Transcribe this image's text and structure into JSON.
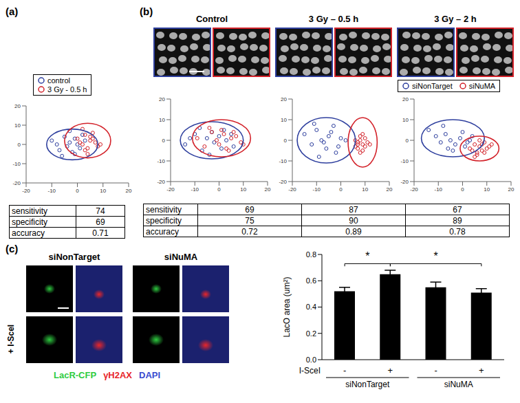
{
  "chart_data": [
    {
      "type": "scatter",
      "panel": "(a)",
      "xlim": [
        -20,
        20
      ],
      "ylim": [
        -20,
        20
      ],
      "xticks": [
        -20,
        -10,
        0,
        10,
        20
      ],
      "yticks": [
        -20,
        -10,
        0,
        10,
        20
      ],
      "legend": "top",
      "series": [
        {
          "name": "control",
          "color": "#2e3f9e",
          "x": [
            -10,
            -7,
            -5,
            -4,
            -3,
            -2,
            -1,
            0,
            1,
            2,
            -6,
            -8,
            -3,
            -1,
            3
          ],
          "values": [
            2,
            -3,
            4,
            -1,
            1,
            -4,
            3,
            0,
            -2,
            5,
            -6,
            0,
            7,
            -5,
            2
          ],
          "ellipse": {
            "cx": -2,
            "cy": 0,
            "rx": 10,
            "ry": 8
          }
        },
        {
          "name": "3 Gy - 0.5 h",
          "color": "#d3222a",
          "x": [
            0,
            2,
            3,
            4,
            5,
            6,
            7,
            3,
            1,
            5,
            8,
            2,
            4,
            6,
            9
          ],
          "values": [
            3,
            0,
            5,
            -2,
            2,
            6,
            1,
            -3,
            1,
            4,
            -1,
            8,
            -5,
            3,
            0
          ],
          "ellipse": {
            "cx": 4,
            "cy": 2,
            "rx": 9,
            "ry": 9
          }
        }
      ],
      "table": {
        "rows": [
          "sensitivity",
          "specificity",
          "accuracy"
        ],
        "values": [
          74,
          69,
          0.71
        ]
      }
    },
    {
      "type": "scatter",
      "panel": "(b)",
      "title": "Control",
      "xlim": [
        -20,
        20
      ],
      "ylim": [
        -20,
        20
      ],
      "xticks": [
        -20,
        -10,
        0,
        10,
        20
      ],
      "yticks": [
        -20,
        -10,
        0,
        10,
        20
      ],
      "legend": "right",
      "series": [
        {
          "name": "siNonTarget",
          "color": "#2e3f9e",
          "x": [
            -14,
            -10,
            -7,
            -5,
            -3,
            -2,
            0,
            1,
            3,
            5,
            -8,
            -4,
            2,
            6,
            -12
          ],
          "values": [
            -2,
            3,
            -5,
            1,
            4,
            -1,
            2,
            -4,
            0,
            3,
            6,
            -7,
            5,
            -3,
            1
          ],
          "ellipse": {
            "cx": -3,
            "cy": 0,
            "rx": 13,
            "ry": 9
          }
        },
        {
          "name": "siNuMA",
          "color": "#d3222a",
          "x": [
            -9,
            -6,
            -3,
            -1,
            0,
            2,
            4,
            5,
            7,
            9,
            -4,
            1,
            3,
            6,
            10
          ],
          "values": [
            1,
            -3,
            4,
            0,
            -2,
            3,
            -5,
            1,
            2,
            -1,
            6,
            5,
            -4,
            4,
            -2
          ],
          "ellipse": {
            "cx": 1,
            "cy": 1,
            "rx": 12,
            "ry": 9
          }
        }
      ],
      "table": {
        "rows": [
          "sensitivity",
          "specificity",
          "accuracy"
        ],
        "values": [
          69,
          75,
          0.72
        ]
      }
    },
    {
      "type": "scatter",
      "title": "3 Gy – 0.5 h",
      "xlim": [
        -20,
        20
      ],
      "ylim": [
        -20,
        20
      ],
      "xticks": [
        -20,
        -10,
        0,
        10,
        20
      ],
      "yticks": [
        -20,
        -10,
        0,
        10,
        20
      ],
      "series": [
        {
          "name": "siNonTarget",
          "color": "#2e3f9e",
          "x": [
            -15,
            -12,
            -10,
            -8,
            -6,
            -5,
            -3,
            -2,
            0,
            -9,
            -4,
            -11,
            -7,
            -1,
            2
          ],
          "values": [
            3,
            -2,
            5,
            0,
            -4,
            2,
            7,
            -6,
            1,
            -8,
            4,
            8,
            -1,
            -3,
            0
          ],
          "ellipse": {
            "cx": -6,
            "cy": 0,
            "rx": 12,
            "ry": 11
          }
        },
        {
          "name": "siNuMA",
          "color": "#d3222a",
          "x": [
            6,
            7,
            8,
            9,
            10,
            8,
            7,
            9,
            11,
            6,
            10,
            8,
            12,
            9,
            7
          ],
          "values": [
            -3,
            -1,
            0,
            -2,
            1,
            2,
            -4,
            -5,
            -1,
            0,
            -3,
            -6,
            -2,
            3,
            -2
          ],
          "ellipse": {
            "cx": 9,
            "cy": -1,
            "rx": 6,
            "ry": 12
          }
        }
      ],
      "table": {
        "values": [
          87,
          90,
          0.89
        ]
      }
    },
    {
      "type": "scatter",
      "title": "3 Gy – 2 h",
      "xlim": [
        -20,
        20
      ],
      "ylim": [
        -20,
        20
      ],
      "xticks": [
        -20,
        -10,
        0,
        10,
        20
      ],
      "yticks": [
        -20,
        -10,
        0,
        10,
        20
      ],
      "series": [
        {
          "name": "siNonTarget",
          "color": "#2e3f9e",
          "x": [
            -14,
            -11,
            -9,
            -7,
            -5,
            -3,
            -1,
            1,
            3,
            -8,
            -4,
            0,
            2,
            -6,
            4
          ],
          "values": [
            5,
            2,
            -1,
            3,
            0,
            -2,
            1,
            -3,
            0,
            7,
            -5,
            4,
            -1,
            -4,
            2
          ],
          "ellipse": {
            "cx": -4,
            "cy": 1,
            "rx": 13,
            "ry": 9
          }
        },
        {
          "name": "siNuMA",
          "color": "#d3222a",
          "x": [
            3,
            5,
            6,
            7,
            8,
            9,
            10,
            6,
            8,
            4,
            11,
            7,
            9,
            5,
            12
          ],
          "values": [
            -4,
            -2,
            -6,
            -3,
            -5,
            -1,
            -4,
            -7,
            -2,
            -5,
            -3,
            0,
            -6,
            -8,
            -2
          ],
          "ellipse": {
            "cx": 7,
            "cy": -4,
            "rx": 8,
            "ry": 6
          }
        }
      ],
      "table": {
        "values": [
          67,
          89,
          0.78
        ]
      }
    },
    {
      "type": "bar",
      "panel": "(c)",
      "categories": [
        "-",
        "+",
        "-",
        "+"
      ],
      "groups": [
        "siNonTarget",
        "siNonTarget",
        "siNuMA",
        "siNuMA"
      ],
      "row_label": "I-SceI",
      "values": [
        0.52,
        0.65,
        0.55,
        0.51
      ],
      "errors": [
        0.03,
        0.03,
        0.04,
        0.03
      ],
      "color": "#000000",
      "ylabel": "LacO area (um²)",
      "ylim": [
        0,
        0.8
      ],
      "yticks": [
        {
          "value": 0,
          "label": "0.0"
        },
        0.2,
        0.4,
        0.6,
        0.8
      ],
      "significance": [
        {
          "from": 0,
          "to": 1,
          "label": "*"
        },
        {
          "from": 1,
          "to": 3,
          "label": "*"
        }
      ]
    }
  ],
  "images": {
    "c": {
      "columns": [
        "siNonTarget",
        "siNuMA"
      ],
      "row_label": "+ I-SceI",
      "channels": [
        {
          "label": "LacR-CFP",
          "color": "#2ecc40"
        },
        {
          "label": "γH2AX",
          "color": "#e8262a"
        },
        {
          "label": "DAPI",
          "color": "#3a4bd0"
        }
      ]
    }
  }
}
